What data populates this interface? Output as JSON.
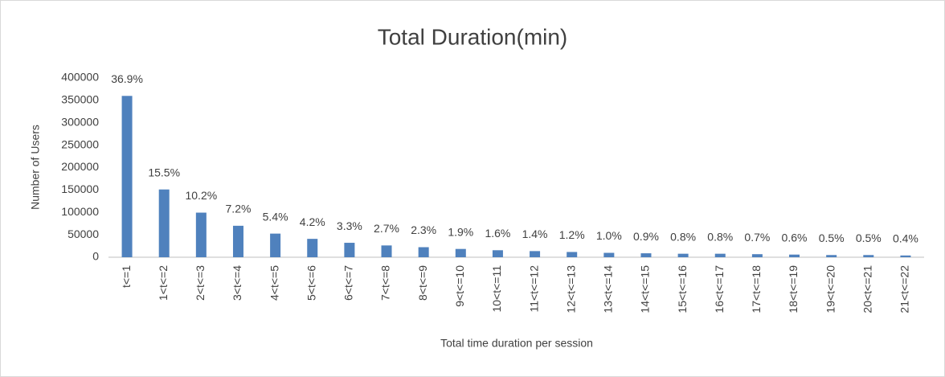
{
  "chart_data": {
    "type": "bar",
    "title": "Total Duration(min)",
    "x_label": "Total time duration per session",
    "y_label": "Number of Users",
    "categories": [
      "t<=1",
      "1<t<=2",
      "2<t<=3",
      "3<t<=4",
      "4<t<=5",
      "5<t<=6",
      "6<t<=7",
      "7<t<=8",
      "8<t<=9",
      "9<t<=10",
      "10<t<=11",
      "11<t<=12",
      "12<t<=13",
      "13<t<=14",
      "14<t<=15",
      "15<t<=16",
      "16<t<=17",
      "17<t<=18",
      "18<t<=19",
      "19<t<=20",
      "20<t<=21",
      "21<t<=22"
    ],
    "values": [
      360000,
      151200,
      99500,
      70200,
      52700,
      41000,
      32200,
      26300,
      22400,
      18500,
      15600,
      13700,
      11700,
      9800,
      8800,
      7800,
      7800,
      6800,
      5900,
      4900,
      4900,
      3900
    ],
    "data_labels": [
      "36.9%",
      "15.5%",
      "10.2%",
      "7.2%",
      "5.4%",
      "4.2%",
      "3.3%",
      "2.7%",
      "2.3%",
      "1.9%",
      "1.6%",
      "1.4%",
      "1.2%",
      "1.0%",
      "0.9%",
      "0.8%",
      "0.8%",
      "0.7%",
      "0.6%",
      "0.5%",
      "0.5%",
      "0.4%"
    ],
    "color": "#4f81bd",
    "ylim": [
      0,
      400000
    ],
    "yticks": [
      0,
      50000,
      100000,
      150000,
      200000,
      250000,
      300000,
      350000,
      400000
    ],
    "grid": false
  }
}
